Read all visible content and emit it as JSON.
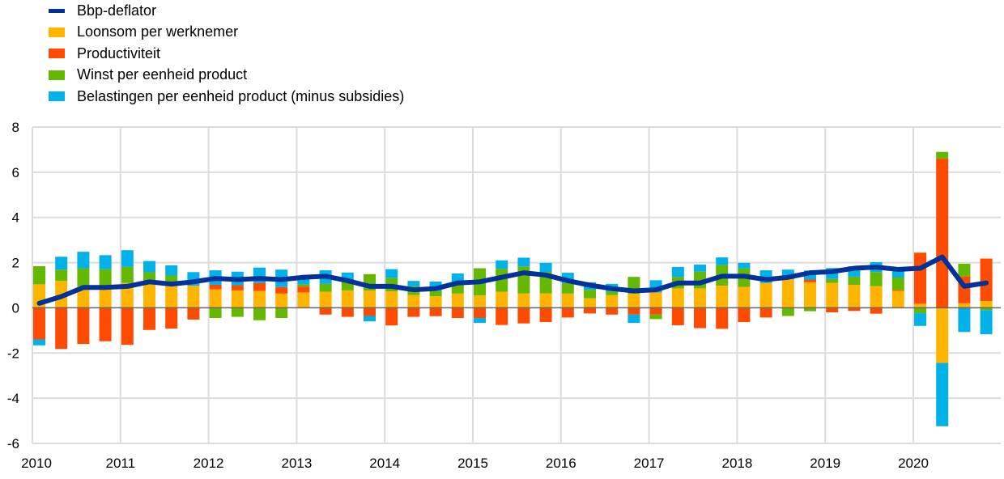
{
  "chart_data": {
    "type": "bar",
    "stacked": true,
    "title": "",
    "xlabel": "",
    "ylabel": "",
    "ylim": [
      -6,
      8
    ],
    "yticks": [
      -6,
      -4,
      -2,
      0,
      2,
      4,
      6,
      8
    ],
    "xticks": [
      "2010",
      "2011",
      "2012",
      "2013",
      "2014",
      "2015",
      "2016",
      "2017",
      "2018",
      "2019",
      "2020"
    ],
    "grid": true,
    "legend_position": "top-left",
    "categories": [
      "2010Q1",
      "2010Q2",
      "2010Q3",
      "2010Q4",
      "2011Q1",
      "2011Q2",
      "2011Q3",
      "2011Q4",
      "2012Q1",
      "2012Q2",
      "2012Q3",
      "2012Q4",
      "2013Q1",
      "2013Q2",
      "2013Q3",
      "2013Q4",
      "2014Q1",
      "2014Q2",
      "2014Q3",
      "2014Q4",
      "2015Q1",
      "2015Q2",
      "2015Q3",
      "2015Q4",
      "2016Q1",
      "2016Q2",
      "2016Q3",
      "2016Q4",
      "2017Q1",
      "2017Q2",
      "2017Q3",
      "2017Q4",
      "2018Q1",
      "2018Q2",
      "2018Q3",
      "2018Q4",
      "2019Q1",
      "2019Q2",
      "2019Q3",
      "2019Q4",
      "2020Q1",
      "2020Q2",
      "2020Q3",
      "2020Q4"
    ],
    "series": [
      {
        "name": "Loonsom per werknemer",
        "kind": "bar",
        "color": "#FFB400",
        "values": [
          1.04,
          1.19,
          0.95,
          0.95,
          1.1,
          1.04,
          1.0,
          0.98,
          0.82,
          0.77,
          0.75,
          0.63,
          0.68,
          0.71,
          0.77,
          0.76,
          0.73,
          0.56,
          0.51,
          0.63,
          0.55,
          0.71,
          0.63,
          0.64,
          0.63,
          0.42,
          0.56,
          0.62,
          0.68,
          0.86,
          0.86,
          0.98,
          0.92,
          1.1,
          1.27,
          1.13,
          1.1,
          1.01,
          0.96,
          0.75,
          0.18,
          -2.44,
          0.2,
          0.3
        ]
      },
      {
        "name": "Productiviteit",
        "kind": "bar",
        "color": "#FF4B00",
        "values": [
          -1.4,
          -1.82,
          -1.6,
          -1.48,
          -1.64,
          -0.98,
          -0.92,
          -0.52,
          0.2,
          0.23,
          0.35,
          0.29,
          0.26,
          -0.3,
          -0.4,
          -0.36,
          -0.78,
          -0.4,
          -0.37,
          -0.45,
          -0.45,
          -0.76,
          -0.69,
          -0.63,
          -0.43,
          -0.25,
          -0.3,
          -0.3,
          -0.3,
          -0.77,
          -0.9,
          -0.93,
          -0.63,
          -0.43,
          0.0,
          0.12,
          -0.2,
          -0.14,
          -0.26,
          0.04,
          2.26,
          6.6,
          1.2,
          1.88
        ]
      },
      {
        "name": "Winst per eenheid product",
        "kind": "bar",
        "color": "#65B800",
        "values": [
          0.8,
          0.5,
          0.8,
          0.76,
          0.71,
          0.53,
          0.43,
          0.0,
          -0.45,
          -0.4,
          -0.55,
          -0.45,
          0.1,
          0.35,
          0.44,
          0.73,
          0.6,
          0.4,
          0.23,
          0.47,
          1.2,
          1.02,
          1.2,
          0.95,
          0.47,
          0.38,
          0.15,
          0.75,
          -0.2,
          0.51,
          0.74,
          0.92,
          0.82,
          0.0,
          -0.36,
          -0.15,
          0.18,
          0.37,
          0.62,
          0.55,
          -0.24,
          0.3,
          0.55,
          -0.1
        ]
      },
      {
        "name": "Belastingen per eenheid product (minus subsidies)",
        "kind": "bar",
        "color": "#00B1EA",
        "values": [
          -0.26,
          0.57,
          0.73,
          0.62,
          0.74,
          0.5,
          0.45,
          0.6,
          0.64,
          0.6,
          0.68,
          0.77,
          0.24,
          0.6,
          0.35,
          -0.24,
          0.38,
          0.23,
          0.42,
          0.42,
          -0.22,
          0.37,
          0.39,
          0.4,
          0.45,
          0.33,
          0.35,
          -0.37,
          0.54,
          0.44,
          0.31,
          0.33,
          0.25,
          0.56,
          0.42,
          0.4,
          0.48,
          0.46,
          0.44,
          0.36,
          -0.56,
          -2.8,
          -1.07,
          -1.07
        ]
      },
      {
        "name": "Bbp-deflator",
        "kind": "line",
        "color": "#003299",
        "values": [
          0.2,
          0.5,
          0.9,
          0.9,
          0.95,
          1.15,
          1.05,
          1.15,
          1.3,
          1.25,
          1.3,
          1.25,
          1.35,
          1.4,
          1.2,
          0.95,
          0.95,
          0.8,
          0.85,
          1.1,
          1.15,
          1.35,
          1.55,
          1.45,
          1.2,
          1.0,
          0.85,
          0.75,
          0.8,
          1.1,
          1.1,
          1.4,
          1.4,
          1.25,
          1.35,
          1.55,
          1.6,
          1.75,
          1.8,
          1.7,
          1.75,
          2.25,
          0.95,
          1.1
        ]
      }
    ],
    "legend_order": [
      "Bbp-deflator",
      "Loonsom per werknemer",
      "Productiviteit",
      "Winst per eenheid product",
      "Belastingen per eenheid product (minus subsidies)"
    ]
  }
}
